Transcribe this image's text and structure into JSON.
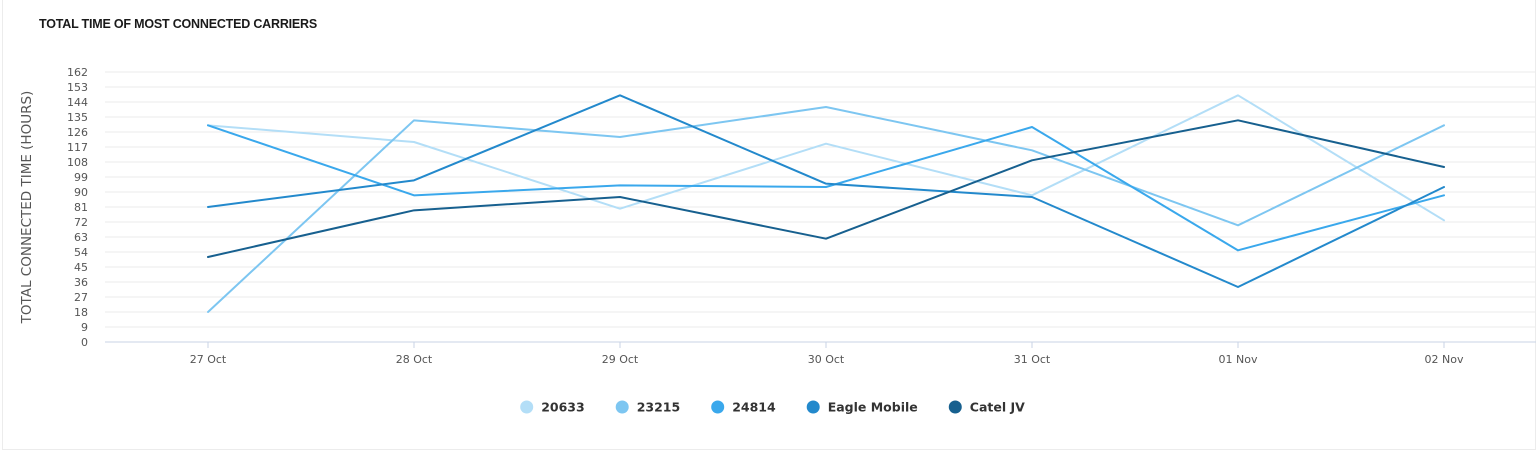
{
  "header": {
    "title": "TOTAL TIME OF MOST CONNECTED CARRIERS"
  },
  "chart_data": {
    "type": "line",
    "title": "TOTAL TIME OF MOST CONNECTED CARRIERS",
    "xlabel": "",
    "ylabel": "TOTAL CONNECTED TIME (HOURS)",
    "ylim": [
      0,
      162
    ],
    "yticks": [
      0,
      9,
      18,
      27,
      36,
      45,
      54,
      63,
      72,
      81,
      90,
      99,
      108,
      117,
      126,
      135,
      144,
      153,
      162
    ],
    "grid": true,
    "legend_position": "bottom-center",
    "categories": [
      "27 Oct",
      "28 Oct",
      "29 Oct",
      "30 Oct",
      "31 Oct",
      "01 Nov",
      "02 Nov"
    ],
    "series": [
      {
        "name": "20633",
        "color": "#b3def7",
        "values": [
          130,
          120,
          80,
          119,
          88,
          148,
          73
        ]
      },
      {
        "name": "23215",
        "color": "#7dc6f1",
        "values": [
          18,
          133,
          123,
          141,
          115,
          70,
          130
        ]
      },
      {
        "name": "24814",
        "color": "#3aa8ec",
        "values": [
          130,
          88,
          94,
          93,
          129,
          55,
          88
        ]
      },
      {
        "name": "Eagle Mobile",
        "color": "#2389cc",
        "values": [
          81,
          97,
          148,
          95,
          87,
          33,
          93
        ]
      },
      {
        "name": "Catel JV",
        "color": "#17608f",
        "values": [
          51,
          79,
          87,
          62,
          109,
          133,
          105
        ]
      }
    ]
  }
}
